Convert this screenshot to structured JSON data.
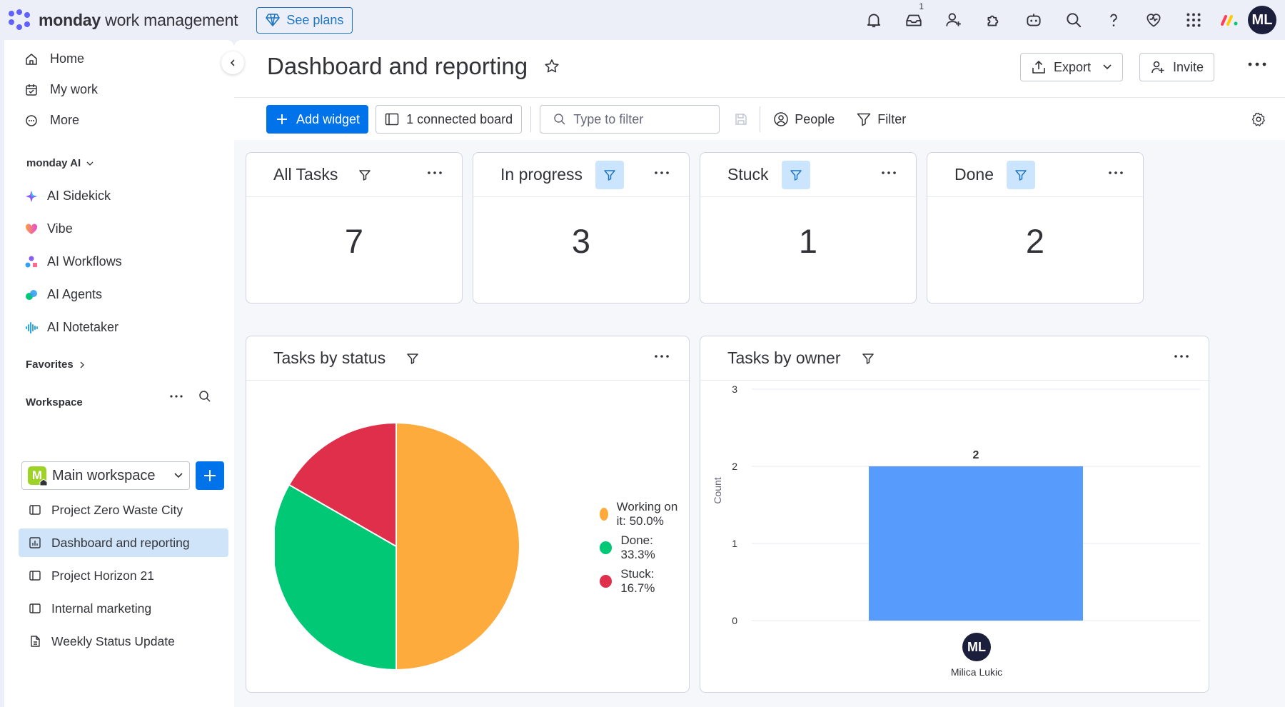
{
  "app": {
    "brand_bold": "monday",
    "brand_rest": " work management",
    "see_plans": "See plans",
    "inbox_badge": "1",
    "avatar": "ML",
    "accent": "#0073ea"
  },
  "sidebar": {
    "nav": [
      {
        "label": "Home",
        "icon": "home-icon"
      },
      {
        "label": "My work",
        "icon": "calendar-check-icon"
      },
      {
        "label": "More",
        "icon": "more-circle-icon"
      }
    ],
    "ai_section": "monday AI",
    "ai_items": [
      {
        "label": "AI Sidekick",
        "icon": "sparkle-icon"
      },
      {
        "label": "Vibe",
        "icon": "heart-icon"
      },
      {
        "label": "AI Workflows",
        "icon": "workflow-icon"
      },
      {
        "label": "AI Agents",
        "icon": "agents-icon"
      },
      {
        "label": "AI Notetaker",
        "icon": "waveform-icon"
      }
    ],
    "favorites": "Favorites",
    "workspace_label": "Workspace",
    "workspace_name": "Main workspace",
    "workspace_initial": "M",
    "boards": [
      {
        "label": "Project Zero Waste City",
        "icon": "board-icon",
        "active": false
      },
      {
        "label": "Dashboard and reporting",
        "icon": "dashboard-icon",
        "active": true
      },
      {
        "label": "Project Horizon 21",
        "icon": "board-icon",
        "active": false
      },
      {
        "label": "Internal marketing",
        "icon": "board-icon",
        "active": false
      },
      {
        "label": "Weekly Status Update",
        "icon": "doc-icon",
        "active": false
      }
    ]
  },
  "header": {
    "title": "Dashboard and reporting",
    "export": "Export",
    "invite": "Invite"
  },
  "toolbar": {
    "add_widget": "Add widget",
    "connected": "1 connected board",
    "filter_placeholder": "Type to filter",
    "people": "People",
    "filter": "Filter"
  },
  "counters": [
    {
      "title": "All Tasks",
      "value": "7",
      "filter_highlight": false
    },
    {
      "title": "In progress",
      "value": "3",
      "filter_highlight": true
    },
    {
      "title": "Stuck",
      "value": "1",
      "filter_highlight": true
    },
    {
      "title": "Done",
      "value": "2",
      "filter_highlight": true
    }
  ],
  "status_widget": {
    "title": "Tasks by status"
  },
  "owner_widget": {
    "title": "Tasks by owner",
    "owner_initials": "ML",
    "owner_name": "Milica Lukic"
  },
  "chart_data": [
    {
      "type": "pie",
      "title": "Tasks by status",
      "slices": [
        {
          "label": "Working on it",
          "value": 50.0,
          "display": "Working on it: 50.0%",
          "color": "#fdab3d"
        },
        {
          "label": "Done",
          "value": 33.3,
          "display": "Done: 33.3%",
          "color": "#00c875"
        },
        {
          "label": "Stuck",
          "value": 16.7,
          "display": "Stuck: 16.7%",
          "color": "#df2f4a"
        }
      ]
    },
    {
      "type": "bar",
      "title": "Tasks by owner",
      "categories": [
        "Milica Lukic"
      ],
      "values": [
        2
      ],
      "data_labels": [
        "2"
      ],
      "ylabel": "Count",
      "ylim": [
        0,
        3
      ],
      "yticks": [
        "0",
        "1",
        "2",
        "3"
      ],
      "color": "#579bfc",
      "grid": true
    }
  ]
}
